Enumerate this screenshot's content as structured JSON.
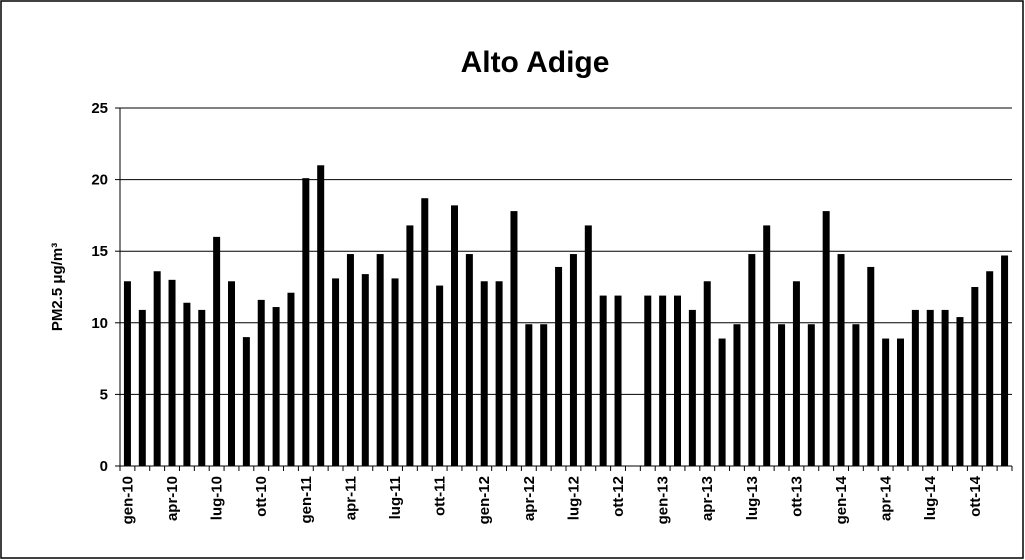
{
  "chart_data": {
    "type": "bar",
    "title": "Alto Adige",
    "ylabel": "PM2.5 μg/m³",
    "categories": [
      "gen-10",
      null,
      null,
      "apr-10",
      null,
      null,
      "lug-10",
      null,
      null,
      "ott-10",
      null,
      null,
      "gen-11",
      null,
      null,
      "apr-11",
      null,
      null,
      "lug-11",
      null,
      null,
      "ott-11",
      null,
      null,
      "gen-12",
      null,
      null,
      "apr-12",
      null,
      null,
      "lug-12",
      null,
      null,
      "ott-12",
      null,
      null,
      "gen-13",
      null,
      null,
      "apr-13",
      null,
      null,
      "lug-13",
      null,
      null,
      "ott-13",
      null,
      null,
      "gen-14",
      null,
      null,
      "apr-14",
      null,
      null,
      "lug-14",
      null,
      null,
      "ott-14",
      null,
      null
    ],
    "values": [
      12.9,
      10.9,
      13.6,
      13.0,
      11.4,
      10.9,
      16.0,
      12.9,
      9.0,
      11.6,
      11.1,
      12.1,
      20.1,
      21.0,
      13.1,
      14.8,
      13.4,
      14.8,
      13.1,
      16.8,
      18.7,
      12.6,
      18.2,
      14.8,
      12.9,
      12.9,
      17.8,
      9.9,
      9.9,
      13.9,
      14.8,
      16.8,
      11.9,
      11.9,
      null,
      11.9,
      11.9,
      11.9,
      10.9,
      12.9,
      8.9,
      9.9,
      14.8,
      16.8,
      9.9,
      12.9,
      9.9,
      17.8,
      14.8,
      9.9,
      13.9,
      8.9,
      8.9,
      10.9,
      10.9,
      10.9,
      10.4,
      12.5,
      13.6,
      14.7
    ],
    "color": "#000000",
    "ylim": [
      0,
      25
    ],
    "yticks": [
      0,
      5,
      10,
      15,
      20,
      25
    ],
    "grid": true
  }
}
